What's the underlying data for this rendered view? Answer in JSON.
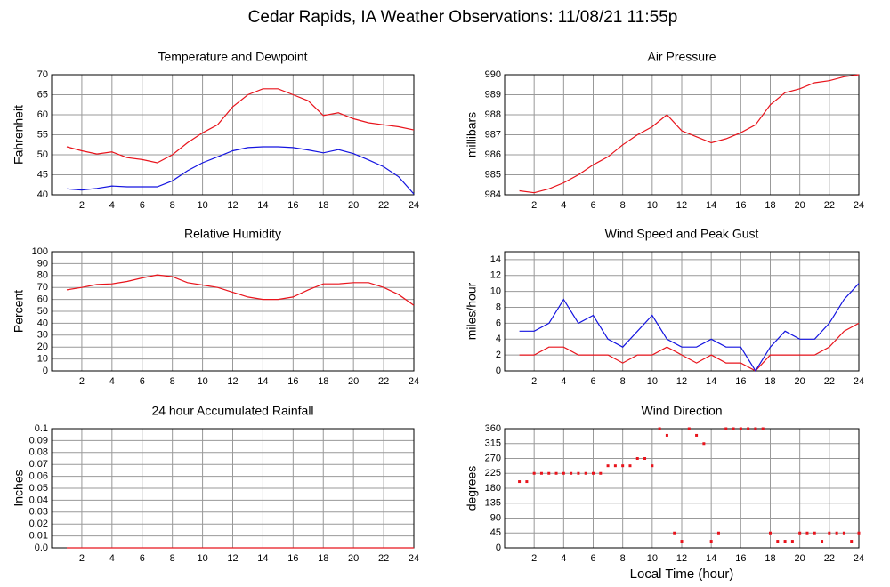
{
  "title": "Cedar Rapids, IA Weather Observations: 11/08/21 11:55p",
  "chart_data": [
    {
      "type": "line",
      "title": "Temperature and Dewpoint",
      "ylabel": "Fahrenheit",
      "x": [
        1,
        2,
        3,
        4,
        5,
        6,
        7,
        8,
        9,
        10,
        11,
        12,
        13,
        14,
        15,
        16,
        17,
        18,
        19,
        20,
        21,
        22,
        23,
        24
      ],
      "xlim": [
        0,
        24
      ],
      "xticks": [
        2,
        4,
        6,
        8,
        10,
        12,
        14,
        16,
        18,
        20,
        22,
        24
      ],
      "ylim": [
        40,
        70
      ],
      "yticks": [
        40,
        45,
        50,
        55,
        60,
        65,
        70
      ],
      "grid": true,
      "series": [
        {
          "color": "#e8141c",
          "values": [
            52,
            51,
            50.2,
            50.7,
            49.3,
            48.8,
            48,
            50,
            53,
            55.5,
            57.5,
            62,
            65,
            66.5,
            66.5,
            65,
            63.5,
            59.8,
            60.5,
            59,
            58,
            57.5,
            57,
            56.2
          ]
        },
        {
          "color": "#1414e0",
          "values": [
            41.5,
            41.2,
            41.6,
            42.2,
            42,
            42,
            42,
            43.5,
            46,
            48,
            49.5,
            51,
            51.8,
            52,
            52,
            51.8,
            51.2,
            50.5,
            51.3,
            50.3,
            48.7,
            47,
            44.5,
            40.2
          ]
        }
      ]
    },
    {
      "type": "line",
      "title": "Air Pressure",
      "ylabel": "millibars",
      "x": [
        1,
        2,
        3,
        4,
        5,
        6,
        7,
        8,
        9,
        10,
        11,
        12,
        13,
        14,
        15,
        16,
        17,
        18,
        19,
        20,
        21,
        22,
        23,
        24
      ],
      "xlim": [
        0,
        24
      ],
      "xticks": [
        2,
        4,
        6,
        8,
        10,
        12,
        14,
        16,
        18,
        20,
        22,
        24
      ],
      "ylim": [
        984,
        990
      ],
      "yticks": [
        984,
        985,
        986,
        987,
        988,
        989,
        990
      ],
      "grid": true,
      "series": [
        {
          "color": "#e8141c",
          "values": [
            984.2,
            984.1,
            984.3,
            984.6,
            985,
            985.5,
            985.9,
            986.5,
            987,
            987.4,
            988,
            987.2,
            986.9,
            986.6,
            986.8,
            987.1,
            987.5,
            988.5,
            989.1,
            989.3,
            989.6,
            989.7,
            989.9,
            990
          ]
        }
      ]
    },
    {
      "type": "line",
      "title": "Relative Humidity",
      "ylabel": "Percent",
      "x": [
        1,
        2,
        3,
        4,
        5,
        6,
        7,
        8,
        9,
        10,
        11,
        12,
        13,
        14,
        15,
        16,
        17,
        18,
        19,
        20,
        21,
        22,
        23,
        24
      ],
      "xlim": [
        0,
        24
      ],
      "xticks": [
        2,
        4,
        6,
        8,
        10,
        12,
        14,
        16,
        18,
        20,
        22,
        24
      ],
      "ylim": [
        0,
        100
      ],
      "yticks": [
        0,
        10,
        20,
        30,
        40,
        50,
        60,
        70,
        80,
        90,
        100
      ],
      "grid": true,
      "series": [
        {
          "color": "#e8141c",
          "values": [
            68,
            70,
            72.5,
            73,
            75,
            78,
            80.5,
            79,
            74,
            72,
            70,
            66,
            62,
            60,
            60,
            62,
            68,
            73,
            73,
            74,
            74,
            70,
            64,
            55
          ]
        }
      ]
    },
    {
      "type": "line",
      "title": "Wind Speed and Peak Gust",
      "ylabel": "miles/hour",
      "x": [
        1,
        2,
        3,
        4,
        5,
        6,
        7,
        8,
        9,
        10,
        11,
        12,
        13,
        14,
        15,
        16,
        17,
        18,
        19,
        20,
        21,
        22,
        23,
        24
      ],
      "xlim": [
        0,
        24
      ],
      "xticks": [
        2,
        4,
        6,
        8,
        10,
        12,
        14,
        16,
        18,
        20,
        22,
        24
      ],
      "ylim": [
        0,
        15
      ],
      "yticks": [
        0,
        2,
        4,
        6,
        8,
        10,
        12,
        14
      ],
      "grid": true,
      "series": [
        {
          "color": "#e8141c",
          "values": [
            2,
            2,
            3,
            3,
            2,
            2,
            2,
            1,
            2,
            2,
            3,
            2,
            1,
            2,
            1,
            1,
            0,
            2,
            2,
            2,
            2,
            3,
            5,
            6
          ]
        },
        {
          "color": "#1414e0",
          "values": [
            5,
            5,
            6,
            9,
            6,
            7,
            4,
            3,
            5,
            7,
            4,
            3,
            3,
            4,
            3,
            3,
            0,
            3,
            5,
            4,
            4,
            6,
            9,
            11
          ]
        }
      ]
    },
    {
      "type": "line",
      "title": "24 hour Accumulated Rainfall",
      "ylabel": "Inches",
      "x": [
        1,
        2,
        3,
        4,
        5,
        6,
        7,
        8,
        9,
        10,
        11,
        12,
        13,
        14,
        15,
        16,
        17,
        18,
        19,
        20,
        21,
        22,
        23,
        24
      ],
      "xlim": [
        0,
        24
      ],
      "xticks": [
        2,
        4,
        6,
        8,
        10,
        12,
        14,
        16,
        18,
        20,
        22,
        24
      ],
      "ylim": [
        0,
        0.1
      ],
      "yticks": [
        {
          "value": 0,
          "label": "0.0"
        },
        0.01,
        0.02,
        0.03,
        0.04,
        0.05,
        0.06,
        0.07,
        0.08,
        0.09,
        0.1
      ],
      "grid": true,
      "series": [
        {
          "color": "#e8141c",
          "values": [
            0,
            0,
            0,
            0,
            0,
            0,
            0,
            0,
            0,
            0,
            0,
            0,
            0,
            0,
            0,
            0,
            0,
            0,
            0,
            0,
            0,
            0,
            0,
            0
          ]
        }
      ]
    },
    {
      "type": "scatter",
      "title": "Wind Direction",
      "ylabel": "degrees",
      "xlabel": "Local Time (hour)",
      "x": [
        1,
        1.5,
        2,
        2.5,
        3,
        3.5,
        4,
        4.5,
        5,
        5.5,
        6,
        6.5,
        7,
        7.5,
        8,
        8.5,
        9,
        9.5,
        10,
        10.5,
        11,
        11.5,
        12,
        12.5,
        13,
        13.5,
        14,
        14.5,
        15,
        15.5,
        16,
        16.5,
        17,
        17.5,
        18,
        18.5,
        19,
        19.5,
        20,
        20.5,
        21,
        21.5,
        22,
        22.5,
        23,
        23.5,
        24
      ],
      "values": [
        200,
        200,
        225,
        225,
        225,
        225,
        225,
        225,
        225,
        225,
        225,
        225,
        248,
        248,
        248,
        248,
        270,
        270,
        248,
        360,
        340,
        45,
        20,
        360,
        340,
        315,
        20,
        45,
        360,
        360,
        360,
        360,
        360,
        360,
        45,
        20,
        20,
        20,
        45,
        45,
        45,
        20,
        45,
        45,
        45,
        20,
        45
      ],
      "color": "#e8141c",
      "xlim": [
        0,
        24
      ],
      "xticks": [
        2,
        4,
        6,
        8,
        10,
        12,
        14,
        16,
        18,
        20,
        22,
        24
      ],
      "ylim": [
        0,
        360
      ],
      "yticks": [
        0,
        45,
        90,
        135,
        180,
        225,
        270,
        315,
        360
      ],
      "grid": true
    }
  ]
}
